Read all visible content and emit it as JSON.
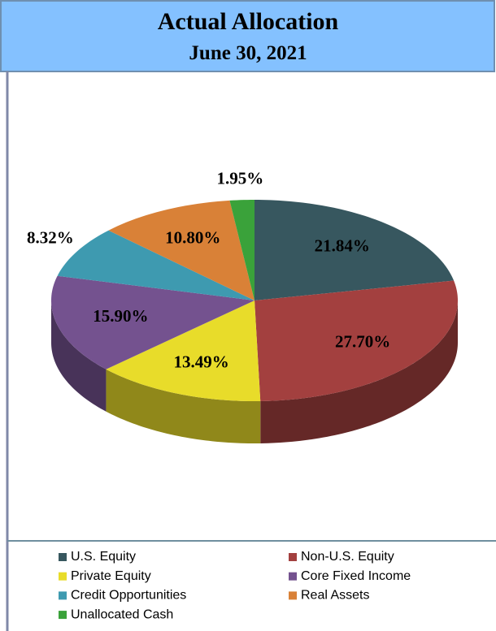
{
  "chart_data": {
    "type": "pie",
    "title": "Actual Allocation",
    "subtitle": "June 30, 2021",
    "categories": [
      "U.S. Equity",
      "Non-U.S. Equity",
      "Private Equity",
      "Core Fixed Income",
      "Credit Opportunities",
      "Real Assets",
      "Unallocated Cash"
    ],
    "values": [
      21.84,
      27.7,
      13.49,
      15.9,
      8.32,
      10.8,
      1.95
    ],
    "value_labels": [
      "21.84%",
      "27.70%",
      "13.49%",
      "15.90%",
      "8.32%",
      "10.80%",
      "1.95%"
    ],
    "colors": [
      "#37575f",
      "#a3403f",
      "#e8dc2a",
      "#74528f",
      "#3e9ab0",
      "#d98137",
      "#3aa23a"
    ],
    "legend": "bottom"
  }
}
